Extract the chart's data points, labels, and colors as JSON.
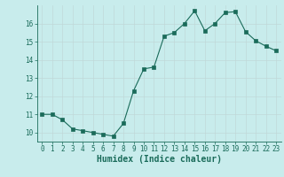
{
  "x": [
    0,
    1,
    2,
    3,
    4,
    5,
    6,
    7,
    8,
    9,
    10,
    11,
    12,
    13,
    14,
    15,
    16,
    17,
    18,
    19,
    20,
    21,
    22,
    23
  ],
  "y": [
    11.0,
    11.0,
    10.7,
    10.2,
    10.1,
    10.0,
    9.9,
    9.8,
    10.5,
    12.3,
    13.5,
    13.6,
    15.3,
    15.5,
    16.0,
    16.7,
    15.6,
    16.0,
    16.6,
    16.65,
    15.55,
    15.05,
    14.75,
    14.5
  ],
  "line_color": "#1a6b5a",
  "marker": "s",
  "marker_size": 2.2,
  "bg_color": "#c8ecec",
  "grid_color": "#c0d8d8",
  "grid_color_minor": "#d8e8e8",
  "xlabel": "Humidex (Indice chaleur)",
  "ylim": [
    9.5,
    17.0
  ],
  "xlim": [
    -0.5,
    23.5
  ],
  "yticks": [
    10,
    11,
    12,
    13,
    14,
    15,
    16
  ],
  "xticks": [
    0,
    1,
    2,
    3,
    4,
    5,
    6,
    7,
    8,
    9,
    10,
    11,
    12,
    13,
    14,
    15,
    16,
    17,
    18,
    19,
    20,
    21,
    22,
    23
  ],
  "tick_label_fontsize": 5.5,
  "xlabel_fontsize": 7.0
}
